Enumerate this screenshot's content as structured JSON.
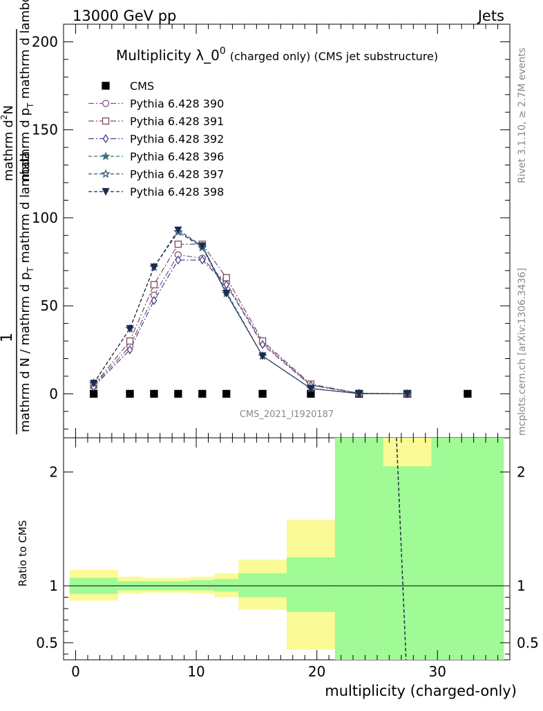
{
  "header": {
    "left": "13000 GeV pp",
    "right": "Jets"
  },
  "title": {
    "main": "Multiplicity λ_0",
    "sup": "0",
    "suffix": "(charged only) (CMS jet substructure)"
  },
  "side_text": {
    "rivet": "Rivet 3.1.10, ≥ 2.7M events",
    "mcplots": "mcplots.cern.ch [arXiv:1306.3436]"
  },
  "watermark": "CMS_2021_I1920187",
  "ylabel_top": {
    "numerator": "1",
    "denominator_main": "mathrm d N / mathrm d p",
    "denominator_sub": "T",
    "denominator_tail": " mathrm d lambda",
    "right_num": "mathrm d",
    "right_sup": "2",
    "right_N": "N",
    "right_den_main": "mathrm d p",
    "right_den_sub": "T",
    "right_den_tail": " mathrm d lambda"
  },
  "ylabel_ratio": "Ratio to CMS",
  "xlabel": "multiplicity (charged-only)",
  "chart_data": [
    {
      "type": "line",
      "panel": "main",
      "ylim": [
        -25,
        210
      ],
      "xlim": [
        -1,
        36
      ],
      "yticks": [
        0,
        50,
        100,
        150,
        200
      ],
      "ytick_labels": [
        "0",
        "50",
        "100",
        "150",
        "200"
      ],
      "legend_position": "top-left",
      "series": [
        {
          "name": "CMS",
          "marker": "square",
          "color": "#000000",
          "x": [
            1.5,
            4.5,
            6.5,
            8.5,
            10.5,
            12.5,
            15.5,
            19.5,
            23.5,
            27.5,
            32.5
          ],
          "y": [
            0,
            0,
            0,
            0,
            0,
            0,
            0,
            0,
            0,
            0,
            0
          ]
        },
        {
          "name": "Pythia 6.428 390",
          "marker": "circle-open",
          "color": "#7b4f86",
          "x": [
            1.5,
            4.5,
            6.5,
            8.5,
            10.5,
            12.5,
            15.5,
            19.5,
            23.5,
            27.5
          ],
          "y": [
            4.5,
            27,
            56,
            79,
            77,
            63,
            29,
            5,
            0.3,
            0
          ]
        },
        {
          "name": "Pythia 6.428 391",
          "marker": "square-open",
          "color": "#7b4a52",
          "x": [
            1.5,
            4.5,
            6.5,
            8.5,
            10.5,
            12.5,
            15.5,
            19.5,
            23.5,
            27.5
          ],
          "y": [
            4.8,
            30,
            62,
            85,
            85,
            66,
            30,
            5.5,
            0.3,
            0
          ]
        },
        {
          "name": "Pythia 6.428 392",
          "marker": "diamond-open",
          "color": "#4b3f8a",
          "x": [
            1.5,
            4.5,
            6.5,
            8.5,
            10.5,
            12.5,
            15.5,
            19.5,
            23.5,
            27.5
          ],
          "y": [
            4.0,
            25,
            53,
            76,
            76,
            62,
            28,
            4.8,
            0.3,
            0
          ]
        },
        {
          "name": "Pythia 6.428 396",
          "marker": "star-filled",
          "color": "#3f6f86",
          "x": [
            1.5,
            4.5,
            6.5,
            8.5,
            10.5,
            12.5,
            15.5,
            19.5,
            23.5,
            27.5
          ],
          "y": [
            6,
            37,
            72,
            92,
            83,
            57,
            21.5,
            3,
            0.1,
            0
          ]
        },
        {
          "name": "Pythia 6.428 397",
          "marker": "star-open",
          "color": "#34557a",
          "x": [
            1.5,
            4.5,
            6.5,
            8.5,
            10.5,
            12.5,
            15.5,
            19.5,
            23.5,
            27.5
          ],
          "y": [
            6,
            37,
            72,
            92,
            84,
            58,
            21.5,
            3,
            0.1,
            0
          ]
        },
        {
          "name": "Pythia 6.428 398",
          "marker": "triangle-down-filled",
          "color": "#1e2b4d",
          "x": [
            1.5,
            4.5,
            6.5,
            8.5,
            10.5,
            12.5,
            15.5,
            19.5,
            23.5,
            27.5
          ],
          "y": [
            6,
            37,
            72,
            93,
            84,
            57,
            21.5,
            3,
            0.1,
            0
          ]
        }
      ]
    },
    {
      "type": "area",
      "panel": "ratio",
      "ylim": [
        0.35,
        2.3
      ],
      "xlim": [
        -1,
        36
      ],
      "yticks": [
        0.5,
        1,
        2
      ],
      "ytick_labels": [
        "0.5",
        "1",
        "2"
      ],
      "xticks": [
        0,
        10,
        20,
        30
      ],
      "xtick_labels": [
        "0",
        "10",
        "20",
        "30"
      ],
      "reference_line": 1,
      "bins": [
        {
          "x0": -0.5,
          "x1": 3.5,
          "stat_lo": 0.93,
          "stat_hi": 1.07,
          "tot_lo": 0.87,
          "tot_hi": 1.14
        },
        {
          "x0": 3.5,
          "x1": 5.5,
          "stat_lo": 0.96,
          "stat_hi": 1.04,
          "tot_lo": 0.93,
          "tot_hi": 1.08
        },
        {
          "x0": 5.5,
          "x1": 7.5,
          "stat_lo": 0.96,
          "stat_hi": 1.04,
          "tot_lo": 0.94,
          "tot_hi": 1.07
        },
        {
          "x0": 7.5,
          "x1": 9.5,
          "stat_lo": 0.96,
          "stat_hi": 1.04,
          "tot_lo": 0.94,
          "tot_hi": 1.07
        },
        {
          "x0": 9.5,
          "x1": 11.5,
          "stat_lo": 0.96,
          "stat_hi": 1.05,
          "tot_lo": 0.93,
          "tot_hi": 1.08
        },
        {
          "x0": 11.5,
          "x1": 13.5,
          "stat_lo": 0.95,
          "stat_hi": 1.06,
          "tot_lo": 0.9,
          "tot_hi": 1.11
        },
        {
          "x0": 13.5,
          "x1": 17.5,
          "stat_lo": 0.9,
          "stat_hi": 1.11,
          "tot_lo": 0.79,
          "tot_hi": 1.23
        },
        {
          "x0": 17.5,
          "x1": 21.5,
          "stat_lo": 0.77,
          "stat_hi": 1.25,
          "tot_lo": 0.44,
          "tot_hi": 1.58
        },
        {
          "x0": 21.5,
          "x1": 25.5,
          "stat_lo": 0.35,
          "stat_hi": 2.3,
          "tot_lo": 0.35,
          "tot_hi": 2.3
        },
        {
          "x0": 25.5,
          "x1": 29.5,
          "stat_lo": 0.35,
          "stat_hi": 2.05,
          "tot_lo": 0.35,
          "tot_hi": 2.3
        },
        {
          "x0": 29.5,
          "x1": 35.5,
          "stat_lo": 0.35,
          "stat_hi": 2.3,
          "tot_lo": 0.35,
          "tot_hi": 2.3
        }
      ],
      "colors": {
        "stat": "#a0fa96",
        "total": "#fafa96"
      },
      "series": [
        {
          "name": "Pythia 6.428 398",
          "color": "#1e2b4d",
          "x": [
            26.6,
            27.4
          ],
          "y": [
            2.3,
            0.35
          ]
        }
      ]
    }
  ]
}
